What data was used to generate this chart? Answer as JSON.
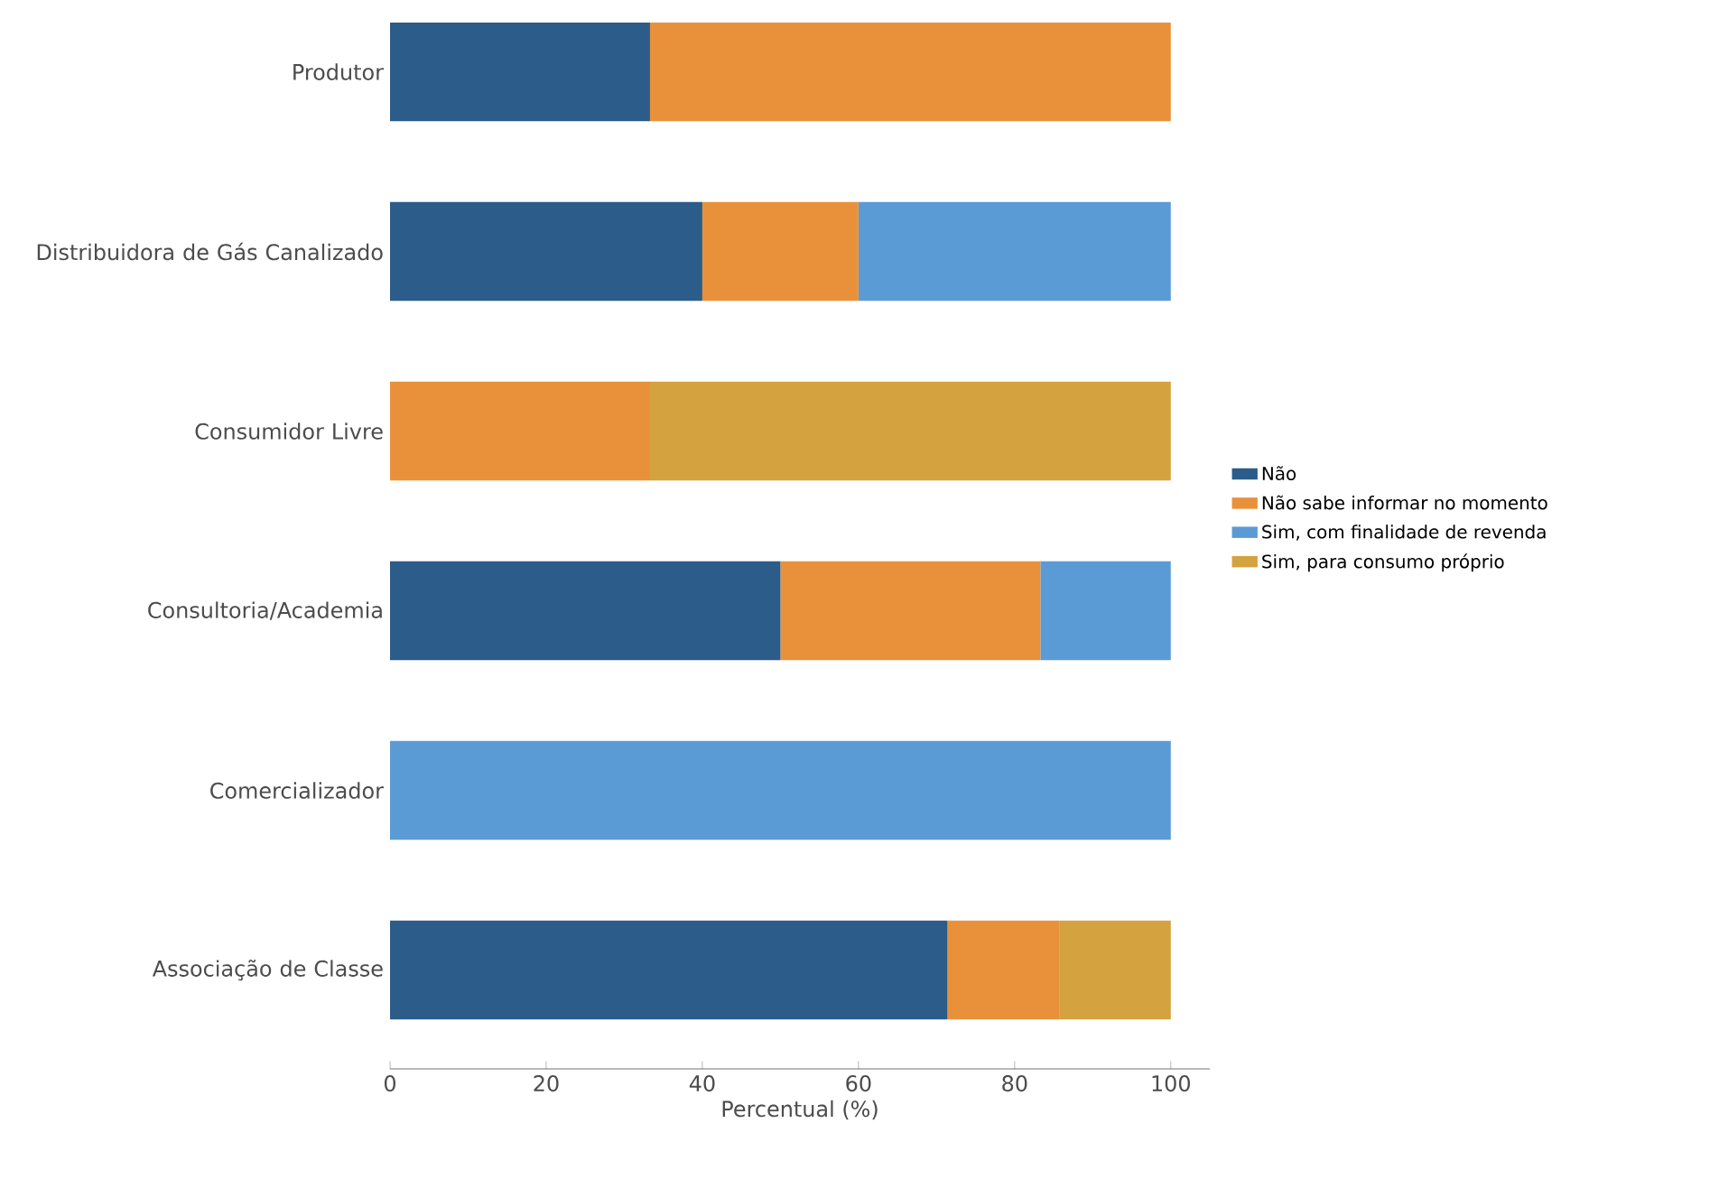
{
  "chart_data": {
    "type": "bar",
    "orientation": "horizontal",
    "stacked": true,
    "xlabel": "Percentual (%)",
    "categories": [
      "Produtor",
      "Distribuidora de Gás Canalizado",
      "Consumidor Livre",
      "Consultoria/Academia",
      "Comercializador",
      "Associação de Classe"
    ],
    "series": [
      {
        "name": "Não",
        "color": "#2b5c8a",
        "values": [
          33.3,
          40,
          0,
          50,
          0,
          71.4
        ]
      },
      {
        "name": "Não sabe informar no momento",
        "color": "#e8913a",
        "values": [
          66.7,
          20,
          33.3,
          33.3,
          0,
          14.3
        ]
      },
      {
        "name": "Sim, com finalidade de revenda",
        "color": "#5b9bd5",
        "values": [
          0,
          40,
          0,
          16.7,
          100,
          0
        ]
      },
      {
        "name": "Sim, para consumo próprio",
        "color": "#d4a23e",
        "values": [
          0,
          0,
          66.7,
          0,
          0,
          14.3
        ]
      }
    ],
    "xlim": [
      0,
      105
    ],
    "xticks": [
      0,
      20,
      40,
      60,
      80,
      100
    ],
    "legend": "right"
  }
}
